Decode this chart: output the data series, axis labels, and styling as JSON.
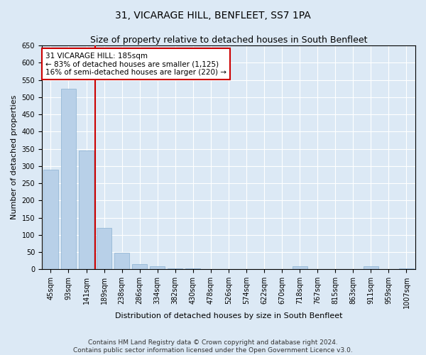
{
  "title": "31, VICARAGE HILL, BENFLEET, SS7 1PA",
  "subtitle": "Size of property relative to detached houses in South Benfleet",
  "xlabel": "Distribution of detached houses by size in South Benfleet",
  "ylabel": "Number of detached properties",
  "bar_categories": [
    "45sqm",
    "93sqm",
    "141sqm",
    "189sqm",
    "238sqm",
    "286sqm",
    "334sqm",
    "382sqm",
    "430sqm",
    "478sqm",
    "526sqm",
    "574sqm",
    "622sqm",
    "670sqm",
    "718sqm",
    "767sqm",
    "815sqm",
    "863sqm",
    "911sqm",
    "959sqm",
    "1007sqm"
  ],
  "bar_values": [
    290,
    525,
    345,
    120,
    48,
    15,
    8,
    3,
    2,
    1,
    0,
    0,
    0,
    0,
    8,
    0,
    0,
    0,
    8,
    0,
    2
  ],
  "bar_color": "#b8d0e8",
  "bar_edge_color": "#8ab0d0",
  "ylim": [
    0,
    650
  ],
  "yticks": [
    0,
    50,
    100,
    150,
    200,
    250,
    300,
    350,
    400,
    450,
    500,
    550,
    600,
    650
  ],
  "vline_x": 2.5,
  "vline_color": "#cc0000",
  "annotation_text": "31 VICARAGE HILL: 185sqm\n← 83% of detached houses are smaller (1,125)\n16% of semi-detached houses are larger (220) →",
  "annotation_box_color": "#ffffff",
  "annotation_box_edge_color": "#cc0000",
  "footer_line1": "Contains HM Land Registry data © Crown copyright and database right 2024.",
  "footer_line2": "Contains public sector information licensed under the Open Government Licence v3.0.",
  "background_color": "#dce9f5",
  "axes_background_color": "#dce9f5",
  "grid_color": "#ffffff",
  "title_fontsize": 10,
  "subtitle_fontsize": 9,
  "label_fontsize": 8,
  "tick_fontsize": 7,
  "annotation_fontsize": 7.5,
  "footer_fontsize": 6.5
}
